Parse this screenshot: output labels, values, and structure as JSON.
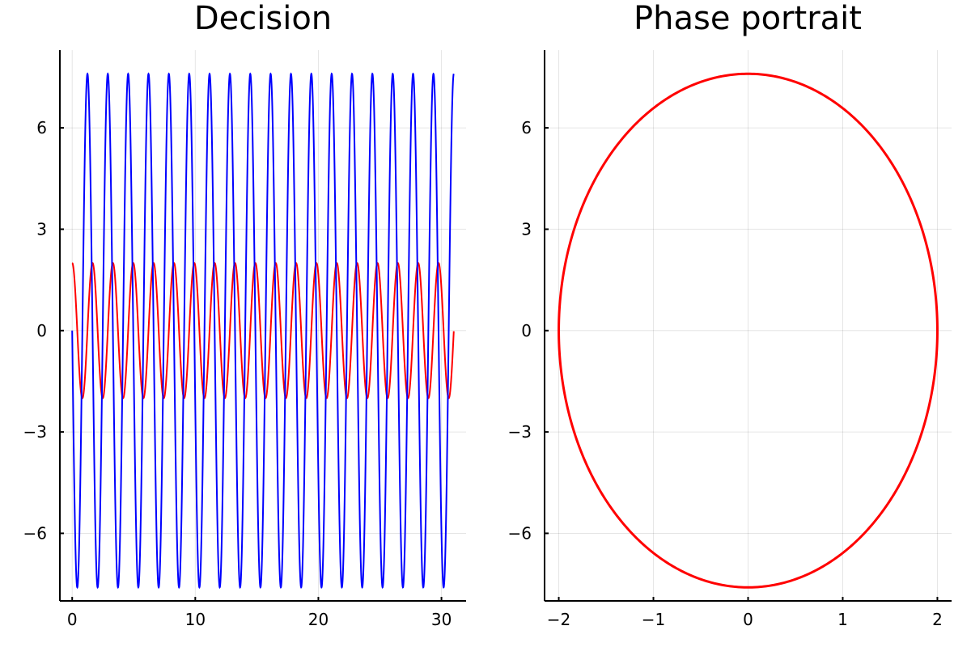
{
  "chart_data": [
    {
      "type": "line",
      "title": "Decision",
      "xlabel": "",
      "ylabel": "",
      "xlim": [
        -1,
        32
      ],
      "ylim": [
        -8.0,
        8.3
      ],
      "xticks": [
        0,
        10,
        20,
        30
      ],
      "xtick_labels": [
        "0",
        "10",
        "20",
        "30"
      ],
      "yticks": [
        -6,
        -3,
        0,
        3,
        6
      ],
      "ytick_labels": [
        "−6",
        "−3",
        "0",
        "3",
        "6"
      ],
      "grid": true,
      "legend": "none",
      "series": [
        {
          "color": "#ff0000",
          "function": "2*cos(3.8*t)",
          "amplitude": 2.0,
          "angular_frequency": 3.8,
          "t_range": [
            0,
            31
          ]
        },
        {
          "color": "#0000ff",
          "function": "-7.6*sin(3.8*t)",
          "amplitude": 7.6,
          "angular_frequency": 3.8,
          "t_range": [
            0,
            31
          ]
        }
      ]
    },
    {
      "type": "line",
      "title": "Phase portrait",
      "xlabel": "",
      "ylabel": "",
      "xlim": [
        -2.15,
        2.15
      ],
      "ylim": [
        -8.0,
        8.3
      ],
      "xticks": [
        -2,
        -1,
        0,
        1,
        2
      ],
      "xtick_labels": [
        "−2",
        "−1",
        "0",
        "1",
        "2"
      ],
      "yticks": [
        -6,
        -3,
        0,
        3,
        6
      ],
      "ytick_labels": [
        "−6",
        "−3",
        "0",
        "3",
        "6"
      ],
      "grid": true,
      "legend": "none",
      "series": [
        {
          "color": "#ff0000",
          "shape": "ellipse",
          "x_semi_axis": 2.0,
          "y_semi_axis": 7.6
        }
      ]
    }
  ]
}
